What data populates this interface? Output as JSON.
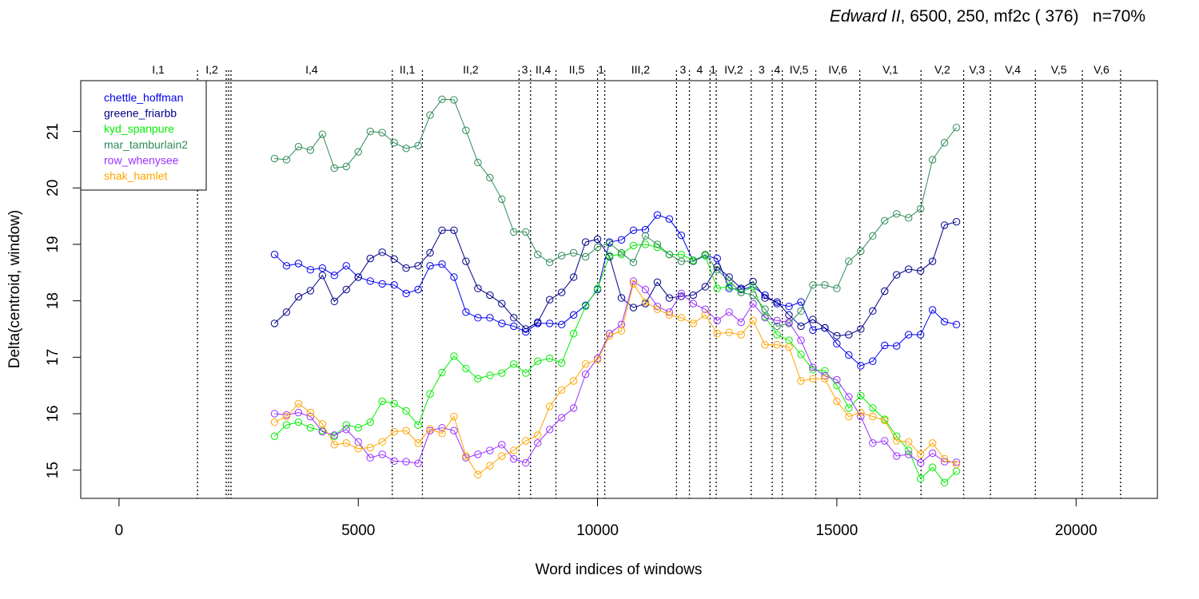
{
  "chart_data": {
    "type": "line",
    "title_italic": "Edward II",
    "title_rest": ", 6500, 250, mf2c ( 376)   n=70%",
    "xlabel": "Word indices of windows",
    "ylabel": "Delta(centroid, window)",
    "xlim": [
      -800,
      21700
    ],
    "ylim": [
      14.5,
      21.9
    ],
    "xticks": [
      0,
      5000,
      10000,
      15000,
      20000
    ],
    "yticks": [
      15,
      16,
      17,
      18,
      19,
      20,
      21
    ],
    "legend_position": "top-left",
    "scenes": [
      {
        "label": "I,1",
        "start": 0
      },
      {
        "label": "I,2",
        "start": 1640
      },
      {
        "label": "",
        "start": 2240
      },
      {
        "label": "",
        "start": 2290
      },
      {
        "label": "I,4",
        "start": 2340
      },
      {
        "label": "II,1",
        "start": 5710
      },
      {
        "label": "II,2",
        "start": 6340
      },
      {
        "label": "3",
        "start": 8360
      },
      {
        "label": "II,4",
        "start": 8600
      },
      {
        "label": "II,5",
        "start": 9130
      },
      {
        "label": "1",
        "start": 10000
      },
      {
        "label": "III,2",
        "start": 10150
      },
      {
        "label": "3",
        "start": 11650
      },
      {
        "label": "4",
        "start": 11920
      },
      {
        "label": "1",
        "start": 12350
      },
      {
        "label": "IV,2",
        "start": 12480
      },
      {
        "label": "3",
        "start": 13210
      },
      {
        "label": "4",
        "start": 13650
      },
      {
        "label": "IV,5",
        "start": 13860
      },
      {
        "label": "IV,6",
        "start": 14560
      },
      {
        "label": "V,1",
        "start": 15480
      },
      {
        "label": "V,2",
        "start": 16760
      },
      {
        "label": "V,3",
        "start": 17650
      },
      {
        "label": "V,4",
        "start": 18210
      },
      {
        "label": "V,5",
        "start": 19150
      },
      {
        "label": "V,6",
        "start": 20130
      },
      {
        "label": "",
        "start": 20930
      }
    ],
    "x": [
      3250,
      3500,
      3750,
      4000,
      4250,
      4500,
      4750,
      5000,
      5250,
      5500,
      5750,
      6000,
      6250,
      6500,
      6750,
      7000,
      7250,
      7500,
      7750,
      8000,
      8250,
      8500,
      8750,
      9000,
      9250,
      9500,
      9750,
      10000,
      10250,
      10500,
      10750,
      11000,
      11250,
      11500,
      11750,
      12000,
      12250,
      12500,
      12750,
      13000,
      13250,
      13500,
      13750,
      14000,
      14250,
      14500,
      14750,
      15000,
      15250,
      15500,
      15750,
      16000,
      16250,
      16500,
      16750,
      17000,
      17250,
      17500
    ],
    "series": [
      {
        "name": "chettle_hoffman",
        "color": "#0000ee",
        "values": [
          18.82,
          18.62,
          18.66,
          18.55,
          18.58,
          18.45,
          18.62,
          18.42,
          18.35,
          18.3,
          18.28,
          18.13,
          18.2,
          18.62,
          18.65,
          18.42,
          17.8,
          17.7,
          17.7,
          17.6,
          17.55,
          17.45,
          17.6,
          17.6,
          17.58,
          17.75,
          17.92,
          18.2,
          19.04,
          19.08,
          19.25,
          19.26,
          19.52,
          19.45,
          19.16,
          18.7,
          18.8,
          18.75,
          18.22,
          18.2,
          18.25,
          18.1,
          17.95,
          17.9,
          17.98,
          17.48,
          17.52,
          17.24,
          17.04,
          16.85,
          16.93,
          17.21,
          17.2,
          17.4,
          17.4,
          17.84,
          17.63,
          17.58
        ]
      },
      {
        "name": "greene_friarbb",
        "color": "#00008b",
        "values": [
          17.6,
          17.8,
          18.07,
          18.18,
          18.45,
          17.99,
          18.2,
          18.42,
          18.75,
          18.86,
          18.74,
          18.58,
          18.62,
          18.85,
          19.25,
          19.25,
          18.7,
          18.22,
          18.1,
          17.95,
          17.7,
          17.5,
          17.62,
          18.02,
          18.15,
          18.42,
          19.04,
          19.09,
          18.78,
          18.05,
          17.88,
          17.95,
          18.33,
          18.05,
          18.08,
          18.1,
          18.25,
          18.6,
          18.42,
          18.22,
          18.34,
          18.05,
          17.98,
          17.75,
          17.55,
          17.67,
          17.52,
          17.38,
          17.4,
          17.5,
          17.82,
          18.17,
          18.46,
          18.56,
          18.53,
          18.7,
          19.34,
          19.4
        ]
      },
      {
        "name": "kyd_spanpure",
        "color": "#00ee00",
        "values": [
          15.6,
          15.8,
          15.85,
          15.75,
          15.7,
          15.6,
          15.8,
          15.75,
          15.85,
          16.22,
          16.18,
          16.05,
          15.8,
          16.35,
          16.73,
          17.02,
          16.8,
          16.62,
          16.68,
          16.72,
          16.88,
          16.72,
          16.93,
          16.98,
          16.9,
          17.42,
          17.9,
          18.22,
          18.8,
          18.82,
          18.98,
          19.0,
          18.95,
          18.82,
          18.82,
          18.72,
          18.8,
          18.22,
          18.25,
          18.15,
          18.25,
          17.72,
          17.4,
          17.3,
          17.05,
          16.78,
          16.76,
          16.5,
          16.1,
          16.32,
          16.1,
          15.9,
          15.6,
          15.35,
          14.85,
          15.05,
          14.78,
          14.98
        ]
      },
      {
        "name": "mar_tamburlain2",
        "color": "#2e8b57",
        "values": [
          20.52,
          20.5,
          20.73,
          20.67,
          20.95,
          20.35,
          20.38,
          20.64,
          21.0,
          20.98,
          20.8,
          20.7,
          20.75,
          21.29,
          21.57,
          21.56,
          21.02,
          20.45,
          20.18,
          19.8,
          19.22,
          19.22,
          18.82,
          18.68,
          18.8,
          18.85,
          18.78,
          18.95,
          19.02,
          18.85,
          18.68,
          19.15,
          19.0,
          18.82,
          18.7,
          18.7,
          18.82,
          18.55,
          18.35,
          18.15,
          18.1,
          17.85,
          17.55,
          17.6,
          17.82,
          18.28,
          18.28,
          18.22,
          18.7,
          18.88,
          19.15,
          19.42,
          19.54,
          19.47,
          19.63,
          20.5,
          20.8,
          21.07
        ]
      },
      {
        "name": "row_whenysee",
        "color": "#9b30ff",
        "values": [
          16.0,
          15.98,
          16.02,
          15.95,
          15.68,
          15.62,
          15.72,
          15.5,
          15.22,
          15.28,
          15.16,
          15.15,
          15.12,
          15.7,
          15.75,
          15.7,
          15.22,
          15.28,
          15.35,
          15.45,
          15.2,
          15.13,
          15.48,
          15.72,
          15.93,
          16.1,
          16.7,
          16.98,
          17.42,
          17.58,
          18.35,
          18.2,
          17.9,
          17.8,
          18.13,
          17.95,
          17.85,
          17.65,
          17.8,
          17.62,
          17.95,
          17.7,
          17.65,
          17.62,
          17.3,
          16.82,
          16.67,
          16.6,
          16.3,
          15.95,
          15.48,
          15.52,
          15.25,
          15.28,
          15.13,
          15.3,
          15.15,
          15.14
        ]
      },
      {
        "name": "shak_hamlet",
        "color": "#ffa500",
        "values": [
          15.85,
          15.95,
          16.18,
          16.02,
          15.82,
          15.45,
          15.48,
          15.38,
          15.4,
          15.5,
          15.68,
          15.7,
          15.48,
          15.73,
          15.65,
          15.95,
          15.25,
          14.92,
          15.08,
          15.25,
          15.35,
          15.52,
          15.62,
          16.13,
          16.42,
          16.58,
          16.88,
          16.95,
          17.38,
          17.47,
          18.3,
          17.98,
          17.85,
          17.75,
          17.7,
          17.6,
          17.75,
          17.42,
          17.44,
          17.4,
          17.65,
          17.22,
          17.22,
          17.18,
          16.58,
          16.62,
          16.62,
          16.22,
          15.95,
          16.02,
          15.95,
          15.88,
          15.52,
          15.5,
          15.28,
          15.48,
          15.2,
          15.1
        ]
      }
    ]
  }
}
